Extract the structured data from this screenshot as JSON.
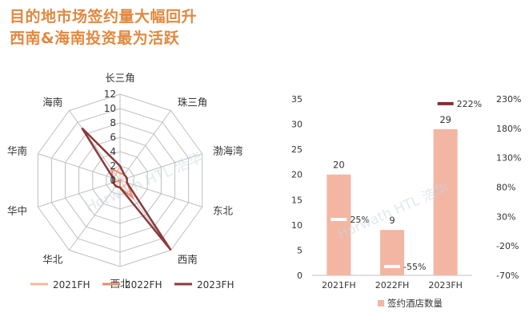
{
  "header": {
    "title_line1": "目的地市场签约量大幅回升",
    "title_line2": "西南&海南投资最为活跃"
  },
  "watermark": "Horwath HTL 浩华",
  "colors": {
    "title": "#e2883f",
    "series_2021": "#f4b7a0",
    "series_2022": "#e98b6d",
    "series_2023": "#8a3a3c",
    "bar": "#f2b6a3",
    "growth_marker": "#8a2b2e",
    "grid": "#bfbfbf"
  },
  "chart_data": [
    {
      "type": "radar",
      "axes": [
        "长三角",
        "珠三角",
        "渤海湾",
        "东北",
        "西南",
        "西北",
        "华北",
        "华中",
        "华南",
        "海南"
      ],
      "radial_ticks": [
        "0",
        "2",
        "4",
        "6",
        "8",
        "10",
        "12"
      ],
      "rmax": 12,
      "series": [
        {
          "name": "2021FH",
          "values": [
            2,
            1,
            1,
            1,
            1,
            1,
            1,
            1,
            1,
            1
          ]
        },
        {
          "name": "2022FH",
          "values": [
            1,
            1,
            1,
            1,
            3,
            1,
            0,
            1,
            1,
            2
          ]
        },
        {
          "name": "2023FH",
          "values": [
            2,
            1,
            1,
            1,
            12,
            1,
            1,
            1,
            1,
            9
          ]
        }
      ],
      "legend": [
        "2021FH",
        "2022FH",
        "2023FH"
      ]
    },
    {
      "type": "bar",
      "categories": [
        "2021FH",
        "2022FH",
        "2023FH"
      ],
      "series": [
        {
          "name": "签约酒店数量",
          "values": [
            20,
            9,
            29
          ]
        }
      ],
      "data_labels": [
        "20",
        "9",
        "29"
      ],
      "ylim": [
        0,
        35
      ],
      "y_ticks": [
        "0",
        "5",
        "10",
        "15",
        "20",
        "25",
        "30",
        "35"
      ],
      "secondary_axis": {
        "ylim": [
          -70,
          230
        ],
        "ticks": [
          "-70%",
          "-20%",
          "30%",
          "80%",
          "130%",
          "180%",
          "230%"
        ],
        "growth": [
          25,
          -55,
          222
        ],
        "growth_labels": [
          "25%",
          "-55%",
          "222%"
        ]
      },
      "legend": [
        "签约酒店数量"
      ]
    }
  ]
}
